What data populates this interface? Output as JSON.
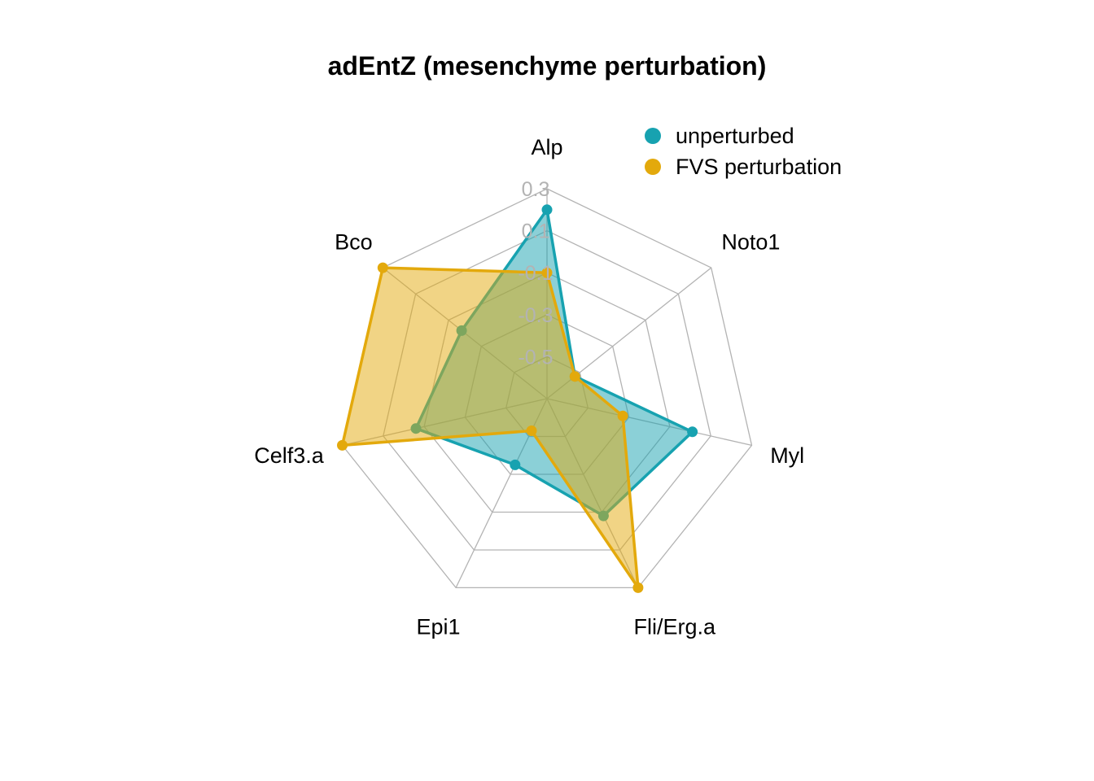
{
  "chart_data": {
    "type": "radar",
    "title": "adEntZ (mesenchyme perturbation)",
    "axes": [
      "Alp",
      "Noto1",
      "Myl",
      "Fli/Erg.a",
      "Epi1",
      "Celf3.a",
      "Bco"
    ],
    "rlim": [
      -0.7,
      0.3
    ],
    "ticks": [
      "0.3",
      "0.1",
      "-0.1",
      "-0.3",
      "-0.5"
    ],
    "grid": true,
    "legend_position": "top-right",
    "series": [
      {
        "name": "unperturbed",
        "color": "#17a2b0",
        "values": [
          0.2,
          -0.53,
          0.01,
          -0.08,
          -0.35,
          -0.06,
          -0.18
        ]
      },
      {
        "name": "FVS perturbation",
        "color": "#e3a90c",
        "values": [
          -0.1,
          -0.53,
          -0.33,
          0.3,
          -0.53,
          0.3,
          0.3
        ]
      }
    ]
  }
}
